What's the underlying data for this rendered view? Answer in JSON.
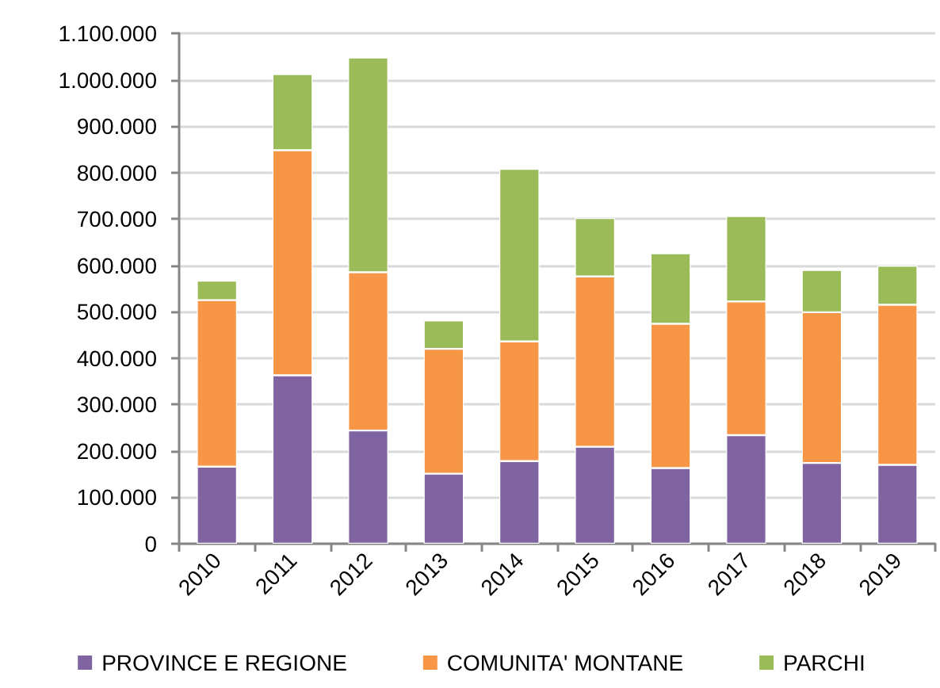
{
  "chart_data": {
    "type": "bar",
    "stacked": true,
    "categories": [
      "2010",
      "2011",
      "2012",
      "2013",
      "2014",
      "2015",
      "2016",
      "2017",
      "2018",
      "2019"
    ],
    "series": [
      {
        "name": "PROVINCE E REGIONE",
        "color": "#8064a2",
        "values": [
          166000,
          363000,
          244000,
          151000,
          178000,
          209000,
          163000,
          234000,
          174000,
          170000
        ]
      },
      {
        "name": "COMUNITA' MONTANE",
        "color": "#f79646",
        "values": [
          359000,
          485000,
          341000,
          269000,
          258000,
          367000,
          311000,
          288000,
          325000,
          345000
        ]
      },
      {
        "name": "PARCHI",
        "color": "#9bbb59",
        "values": [
          42000,
          164000,
          463000,
          61000,
          372000,
          126000,
          152000,
          184000,
          91000,
          84000
        ]
      }
    ],
    "ylim": [
      0,
      1100000
    ],
    "yticks": [
      0,
      {
        "value": 100000,
        "label": "100.000"
      },
      {
        "value": 200000,
        "label": "200.000"
      },
      {
        "value": 300000,
        "label": "300.000"
      },
      {
        "value": 400000,
        "label": "400.000"
      },
      {
        "value": 500000,
        "label": "500.000"
      },
      {
        "value": 600000,
        "label": "600.000"
      },
      {
        "value": 700000,
        "label": "700.000"
      },
      {
        "value": 800000,
        "label": "800.000"
      },
      {
        "value": 900000,
        "label": "900.000"
      },
      {
        "value": 1000000,
        "label": "1.000.000"
      },
      {
        "value": 1100000,
        "label": "1.100.000"
      }
    ],
    "grid": "y",
    "legend": "bottom"
  }
}
